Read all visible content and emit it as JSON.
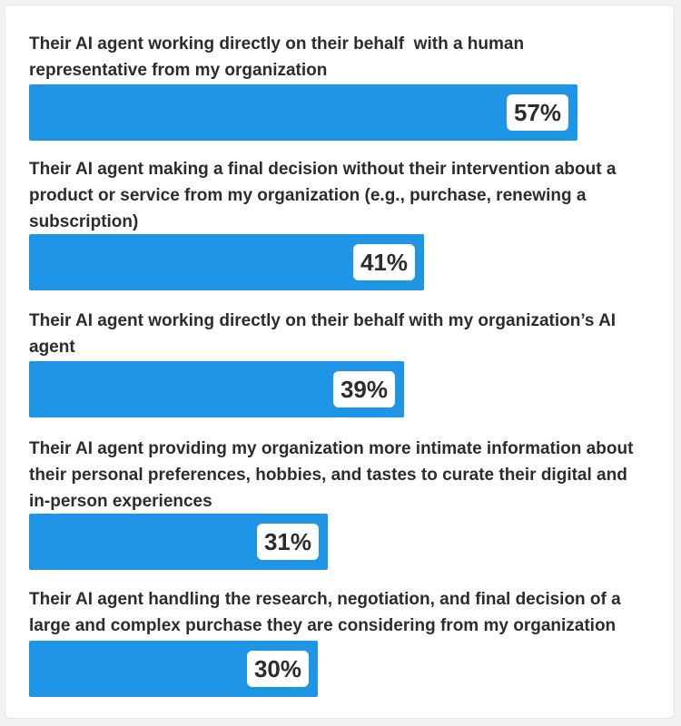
{
  "chart_data": {
    "type": "bar",
    "orientation": "horizontal",
    "categories": [
      "Their AI agent working directly on their behalf  with a human representative from my organization",
      "Their AI agent making a final decision without their intervention about a product or service from my organization (e.g., purchase, renewing a subscription)",
      "Their AI agent working directly on their behalf with my organization’s AI agent",
      "Their AI agent providing my organization more intimate information about their personal preferences, hobbies, and tastes to curate their digital and in-person experiences",
      "Their AI agent handling the research, negotiation, and final decision of a large and complex purchase they are considering from my organization"
    ],
    "values": [
      57,
      41,
      39,
      31,
      30
    ],
    "value_labels": [
      "57%",
      "41%",
      "39%",
      "31%",
      "30%"
    ],
    "xlim": [
      0,
      100
    ],
    "bar_color": "#1f95e6",
    "grid": false,
    "legend": "none"
  }
}
